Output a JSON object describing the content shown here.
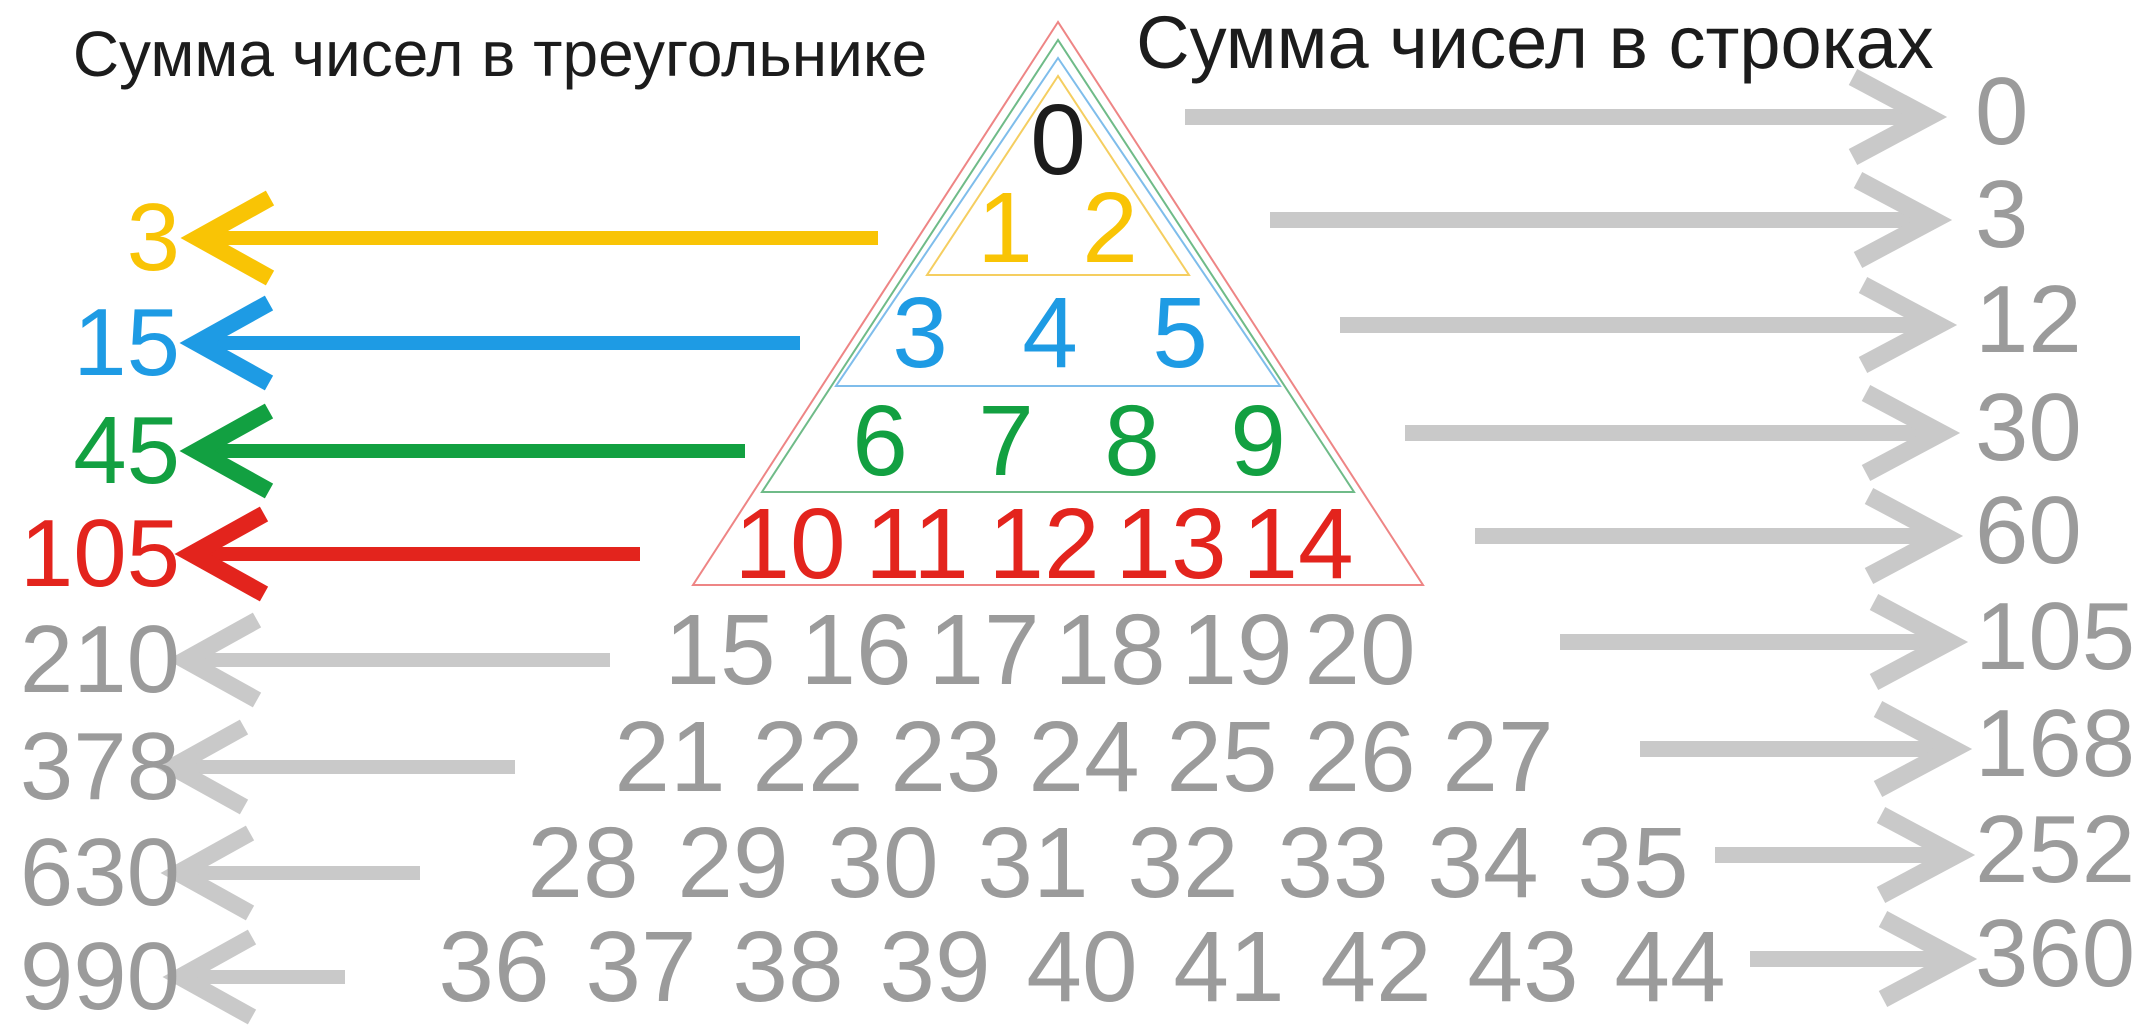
{
  "titles": {
    "left": "Сумма чисел в треугольнике",
    "right": "Сумма чисел в строках"
  },
  "palette": {
    "black": "#1c1c1c",
    "yellow": "#f9c405",
    "blue": "#1e9be4",
    "green": "#12a041",
    "red": "#e3241d",
    "gray": "#9b9b9b",
    "gray_arrow": "#c9c9c9",
    "outline_red": "#ee8585",
    "outline_green": "#6fbb88",
    "outline_blue": "#7fbdeb",
    "outline_yellow": "#f5ce60"
  },
  "triangle_rows": [
    {
      "color": "black",
      "numbers": [
        "0"
      ]
    },
    {
      "color": "yellow",
      "numbers": [
        "1",
        "2"
      ]
    },
    {
      "color": "blue",
      "numbers": [
        "3",
        "4",
        "5"
      ]
    },
    {
      "color": "green",
      "numbers": [
        "6",
        "7",
        "8",
        "9"
      ]
    },
    {
      "color": "red",
      "numbers": [
        "10",
        "11",
        "12",
        "13",
        "14"
      ]
    },
    {
      "color": "gray",
      "numbers": [
        "15",
        "16",
        "17",
        "18",
        "19",
        "20"
      ]
    },
    {
      "color": "gray",
      "numbers": [
        "21",
        "22",
        "23",
        "24",
        "25",
        "26",
        "27"
      ]
    },
    {
      "color": "gray",
      "numbers": [
        "28",
        "29",
        "30",
        "31",
        "32",
        "33",
        "34",
        "35"
      ]
    },
    {
      "color": "gray",
      "numbers": [
        "36",
        "37",
        "38",
        "39",
        "40",
        "41",
        "42",
        "43",
        "44"
      ]
    }
  ],
  "left_sums": [
    {
      "value": "3",
      "color": "yellow"
    },
    {
      "value": "15",
      "color": "blue"
    },
    {
      "value": "45",
      "color": "green"
    },
    {
      "value": "105",
      "color": "red"
    },
    {
      "value": "210",
      "color": "gray"
    },
    {
      "value": "378",
      "color": "gray"
    },
    {
      "value": "630",
      "color": "gray"
    },
    {
      "value": "990",
      "color": "gray"
    }
  ],
  "right_sums": [
    {
      "value": "0"
    },
    {
      "value": "3"
    },
    {
      "value": "12"
    },
    {
      "value": "30"
    },
    {
      "value": "60"
    },
    {
      "value": "105"
    },
    {
      "value": "168"
    },
    {
      "value": "252"
    },
    {
      "value": "360"
    }
  ]
}
